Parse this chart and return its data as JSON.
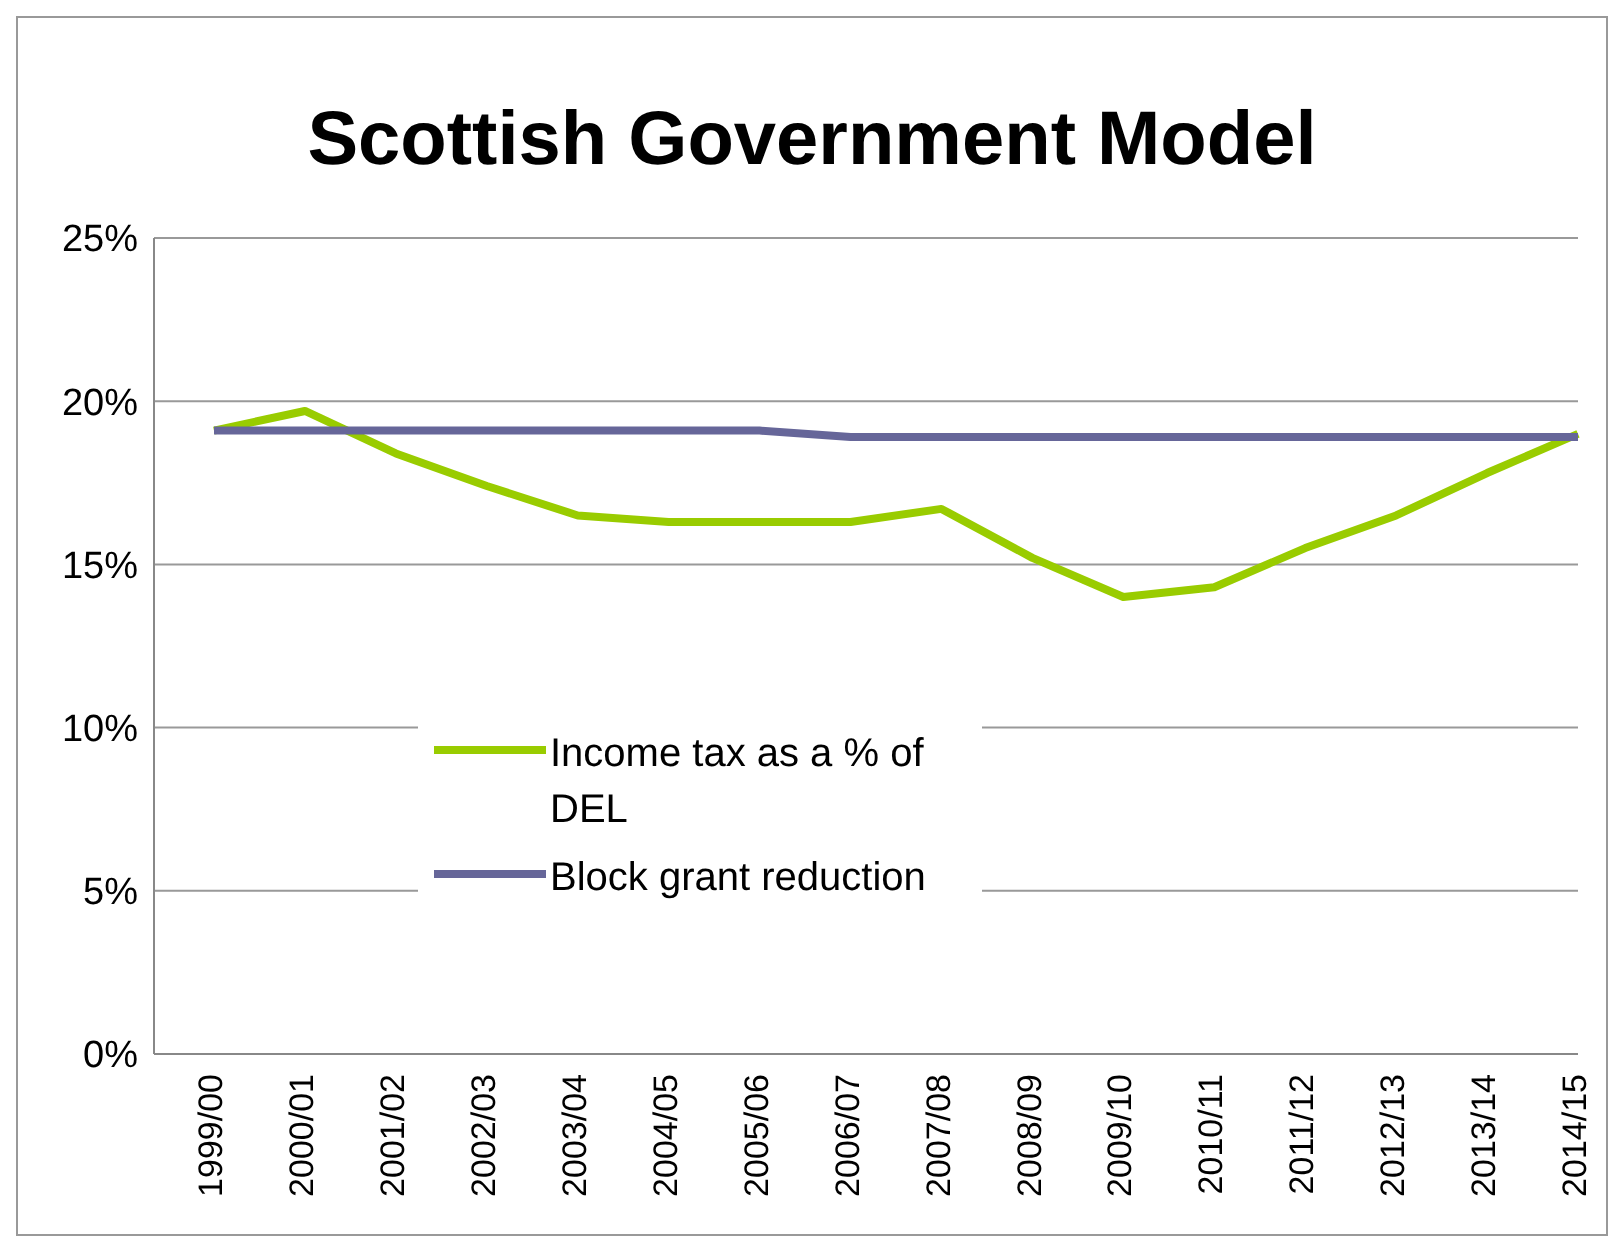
{
  "chart_data": {
    "type": "line",
    "title": "Scottish Government Model",
    "categories": [
      "1999/00",
      "2000/01",
      "2001/02",
      "2002/03",
      "2003/04",
      "2004/05",
      "2005/06",
      "2006/07",
      "2007/08",
      "2008/09",
      "2009/10",
      "2010/11",
      "2011/12",
      "2012/13",
      "2013/14",
      "2014/15"
    ],
    "series": [
      {
        "name": "Income tax as a % of DEL",
        "color": "#99cc00",
        "values": [
          19.1,
          19.7,
          18.4,
          17.4,
          16.5,
          16.3,
          16.3,
          16.3,
          16.7,
          15.2,
          14.0,
          14.3,
          15.5,
          16.5,
          17.8,
          19.0
        ]
      },
      {
        "name": "Block grant reduction",
        "color": "#666699",
        "values": [
          19.1,
          19.1,
          19.1,
          19.1,
          19.1,
          19.1,
          19.1,
          18.9,
          18.9,
          18.9,
          18.9,
          18.9,
          18.9,
          18.9,
          18.9,
          18.9
        ]
      }
    ],
    "ylim": [
      0,
      25
    ],
    "yticks": [
      {
        "value": 0,
        "label": "0%"
      },
      {
        "value": 5,
        "label": "5%"
      },
      {
        "value": 10,
        "label": "10%"
      },
      {
        "value": 15,
        "label": "15%"
      },
      {
        "value": 20,
        "label": "20%"
      },
      {
        "value": 25,
        "label": "25%"
      }
    ],
    "grid": "y",
    "legend": "bottom"
  }
}
